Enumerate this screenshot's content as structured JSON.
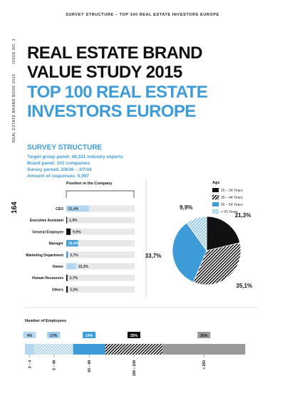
{
  "header": {
    "running_title": "SURVEY STRUCTURE – TOP 100 REAL ESTATE INVESTORS EUROPE"
  },
  "sidebar": {
    "issue": "ISSUE NO. 3",
    "book": "REAL ESTATE BRAND BOOK 2016",
    "page_number": "164"
  },
  "title": {
    "lines": [
      "REAL ESTATE BRAND",
      "VALUE STUDY 2015"
    ],
    "subtitle_lines": [
      "TOP 100 REAL ESTATE",
      "INVESTORS EUROPE"
    ]
  },
  "survey": {
    "heading": "SURVEY STRUCTURE",
    "facts": [
      "Target group panel: 48,331 industry experts",
      "Brand panel: 101 companies",
      "Survey period: 2/8/16 – 3/7/16",
      "Amount of responses: 5,997"
    ]
  },
  "chart_data": [
    {
      "type": "bar",
      "orientation": "horizontal",
      "title": "Position in the Company",
      "categories": [
        "CEO",
        "Executive Assistant",
        "General Employee",
        "Manager",
        "Marketing Department",
        "Owner",
        "Human Resources",
        "Others"
      ],
      "values": [
        51.4,
        1.9,
        9.9,
        26.9,
        3.7,
        22.3,
        2.7,
        3.3
      ],
      "value_labels": [
        "51,4%",
        "1,9%",
        "9,9%",
        "26,9%",
        "3,7%",
        "22,3%",
        "2,7%",
        "3,3%"
      ],
      "colors": [
        "#b3d7f0",
        "#111111",
        "#111111",
        "#3d9bd8",
        "#3d9bd8",
        "#b3d7f0",
        "#111111",
        "#111111"
      ]
    },
    {
      "type": "pie",
      "legend_title": "Age",
      "categories": [
        "25 – 34 Years",
        "35 – 44 Years",
        "45 – 54 Years",
        "> 55 Years"
      ],
      "values": [
        21.3,
        35.1,
        33.7,
        9.9
      ],
      "value_labels": [
        "21,3%",
        "35,1%",
        "33,7%",
        "9,9%"
      ],
      "colors": [
        "#111111",
        "#111111",
        "#3d9bd8",
        "#7fbce6"
      ],
      "hatched": [
        false,
        true,
        false,
        true
      ]
    },
    {
      "type": "stacked-bar",
      "title": "Number of Employees",
      "categories": [
        "0 – 4",
        "5 – 49",
        "50 – 99",
        "100 – 249",
        "> 250"
      ],
      "values": [
        4,
        17,
        14,
        25,
        36
      ],
      "value_labels": [
        "4%",
        "17%",
        "14%",
        "25%",
        "36%"
      ],
      "colors": [
        "#b3d7f0",
        "#9ccbec",
        "#3d9bd8",
        "#111111",
        "#9a9a9a"
      ],
      "hatched": [
        false,
        true,
        false,
        true,
        false
      ]
    }
  ]
}
